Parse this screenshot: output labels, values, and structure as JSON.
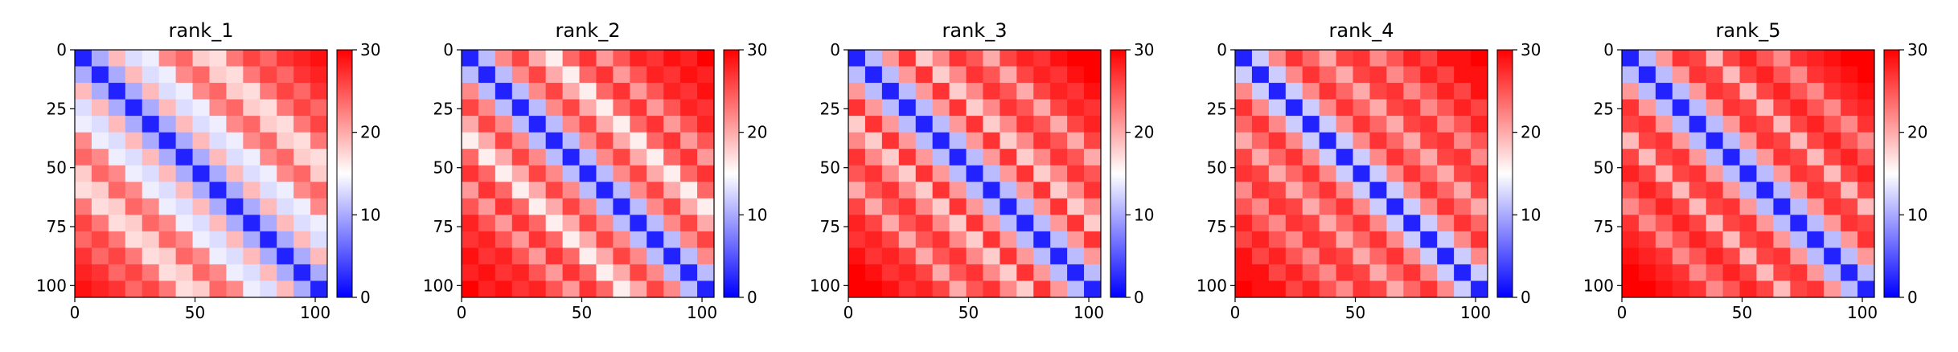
{
  "chart_data": [
    {
      "type": "heatmap",
      "title": "rank_1",
      "colormap": "bwr",
      "clim": [
        0,
        30
      ],
      "cticks": [
        0,
        10,
        20,
        30
      ],
      "xlim": [
        0,
        105
      ],
      "ylim": [
        105,
        0
      ],
      "xticks": [
        0,
        50,
        100
      ],
      "yticks": [
        0,
        25,
        50,
        75,
        100
      ],
      "z": [
        [
          2,
          10,
          19,
          13,
          14,
          22,
          24,
          18,
          17,
          23,
          26,
          24,
          27,
          28,
          29
        ],
        [
          10,
          2,
          10,
          19,
          13,
          14,
          22,
          24,
          18,
          17,
          23,
          26,
          24,
          27,
          28
        ],
        [
          19,
          10,
          2,
          10,
          19,
          13,
          14,
          22,
          24,
          18,
          17,
          23,
          26,
          24,
          27
        ],
        [
          13,
          19,
          10,
          2,
          10,
          19,
          13,
          14,
          22,
          24,
          18,
          17,
          23,
          26,
          24
        ],
        [
          14,
          13,
          19,
          10,
          2,
          10,
          19,
          13,
          14,
          22,
          24,
          18,
          17,
          23,
          26
        ],
        [
          22,
          14,
          13,
          19,
          10,
          2,
          10,
          19,
          13,
          14,
          22,
          24,
          18,
          17,
          23
        ],
        [
          24,
          22,
          14,
          13,
          19,
          10,
          2,
          10,
          19,
          13,
          14,
          22,
          24,
          18,
          17
        ],
        [
          18,
          24,
          22,
          14,
          13,
          19,
          10,
          2,
          10,
          19,
          13,
          14,
          22,
          24,
          18
        ],
        [
          17,
          18,
          24,
          22,
          14,
          13,
          19,
          10,
          2,
          10,
          19,
          13,
          14,
          22,
          24
        ],
        [
          23,
          17,
          18,
          24,
          22,
          14,
          13,
          19,
          10,
          2,
          10,
          19,
          13,
          14,
          22
        ],
        [
          26,
          23,
          17,
          18,
          24,
          22,
          14,
          13,
          19,
          10,
          2,
          10,
          19,
          13,
          14
        ],
        [
          24,
          26,
          23,
          17,
          18,
          24,
          22,
          14,
          13,
          19,
          10,
          2,
          10,
          19,
          13
        ],
        [
          27,
          24,
          26,
          23,
          17,
          18,
          24,
          22,
          14,
          13,
          19,
          10,
          2,
          10,
          19
        ],
        [
          28,
          27,
          24,
          26,
          23,
          17,
          18,
          24,
          22,
          14,
          13,
          19,
          10,
          2,
          10
        ],
        [
          29,
          28,
          27,
          24,
          26,
          23,
          17,
          18,
          24,
          22,
          14,
          13,
          19,
          10,
          2
        ]
      ]
    },
    {
      "type": "heatmap",
      "title": "rank_2",
      "colormap": "bwr",
      "clim": [
        0,
        30
      ],
      "cticks": [
        0,
        10,
        20,
        30
      ],
      "xlim": [
        0,
        105
      ],
      "ylim": [
        105,
        0
      ],
      "xticks": [
        0,
        50,
        100
      ],
      "yticks": [
        0,
        25,
        50,
        75,
        100
      ],
      "z": [
        [
          2,
          11,
          22,
          26,
          20,
          16,
          24,
          27,
          21,
          25,
          28,
          27,
          29,
          28,
          30
        ],
        [
          11,
          2,
          11,
          22,
          26,
          20,
          16,
          24,
          27,
          21,
          25,
          28,
          27,
          29,
          28
        ],
        [
          22,
          11,
          2,
          11,
          22,
          26,
          20,
          16,
          24,
          27,
          21,
          25,
          28,
          27,
          29
        ],
        [
          26,
          22,
          11,
          2,
          11,
          22,
          26,
          20,
          16,
          24,
          27,
          21,
          25,
          28,
          27
        ],
        [
          20,
          26,
          22,
          11,
          2,
          11,
          22,
          26,
          20,
          16,
          24,
          27,
          21,
          25,
          28
        ],
        [
          16,
          20,
          26,
          22,
          11,
          2,
          11,
          22,
          26,
          20,
          16,
          24,
          27,
          21,
          25
        ],
        [
          24,
          16,
          20,
          26,
          22,
          11,
          2,
          11,
          22,
          26,
          20,
          16,
          24,
          27,
          21
        ],
        [
          27,
          24,
          16,
          20,
          26,
          22,
          11,
          2,
          11,
          22,
          26,
          20,
          16,
          24,
          27
        ],
        [
          21,
          27,
          24,
          16,
          20,
          26,
          22,
          11,
          2,
          11,
          22,
          26,
          20,
          16,
          24
        ],
        [
          25,
          21,
          27,
          24,
          16,
          20,
          26,
          22,
          11,
          2,
          11,
          22,
          26,
          20,
          16
        ],
        [
          28,
          25,
          21,
          27,
          24,
          16,
          20,
          26,
          22,
          11,
          2,
          11,
          22,
          26,
          20
        ],
        [
          27,
          28,
          25,
          21,
          27,
          24,
          16,
          20,
          26,
          22,
          11,
          2,
          11,
          22,
          26
        ],
        [
          29,
          27,
          28,
          25,
          21,
          27,
          24,
          16,
          20,
          26,
          22,
          11,
          2,
          11,
          22
        ],
        [
          28,
          29,
          27,
          28,
          25,
          21,
          27,
          24,
          16,
          20,
          26,
          22,
          11,
          2,
          11
        ],
        [
          30,
          28,
          29,
          27,
          28,
          25,
          21,
          27,
          24,
          16,
          20,
          26,
          22,
          11,
          2
        ]
      ]
    },
    {
      "type": "heatmap",
      "title": "rank_3",
      "colormap": "bwr",
      "clim": [
        0,
        30
      ],
      "cticks": [
        0,
        10,
        20,
        30
      ],
      "xlim": [
        0,
        105
      ],
      "ylim": [
        105,
        0
      ],
      "xticks": [
        0,
        50,
        100
      ],
      "yticks": [
        0,
        25,
        50,
        75,
        100
      ],
      "z": [
        [
          2,
          11,
          21,
          27,
          18,
          22,
          27,
          25,
          20,
          26,
          28,
          27,
          29,
          30,
          30
        ],
        [
          11,
          2,
          11,
          21,
          27,
          18,
          22,
          27,
          25,
          20,
          26,
          28,
          27,
          29,
          30
        ],
        [
          21,
          11,
          2,
          11,
          21,
          27,
          18,
          22,
          27,
          25,
          20,
          26,
          28,
          27,
          29
        ],
        [
          27,
          21,
          11,
          2,
          11,
          21,
          27,
          18,
          22,
          27,
          25,
          20,
          26,
          28,
          27
        ],
        [
          18,
          27,
          21,
          11,
          2,
          11,
          21,
          27,
          18,
          22,
          27,
          25,
          20,
          26,
          28
        ],
        [
          22,
          18,
          27,
          21,
          11,
          2,
          11,
          21,
          27,
          18,
          22,
          27,
          25,
          20,
          26
        ],
        [
          27,
          22,
          18,
          27,
          21,
          11,
          2,
          11,
          21,
          27,
          18,
          22,
          27,
          25,
          20
        ],
        [
          25,
          27,
          22,
          18,
          27,
          21,
          11,
          2,
          11,
          21,
          27,
          18,
          22,
          27,
          25
        ],
        [
          20,
          25,
          27,
          22,
          18,
          27,
          21,
          11,
          2,
          11,
          21,
          27,
          18,
          22,
          27
        ],
        [
          26,
          20,
          25,
          27,
          22,
          18,
          27,
          21,
          11,
          2,
          11,
          21,
          27,
          18,
          22
        ],
        [
          28,
          26,
          20,
          25,
          27,
          22,
          18,
          27,
          21,
          11,
          2,
          11,
          21,
          27,
          18
        ],
        [
          27,
          28,
          26,
          20,
          25,
          27,
          22,
          18,
          27,
          21,
          11,
          2,
          11,
          21,
          27
        ],
        [
          29,
          27,
          28,
          26,
          20,
          25,
          27,
          22,
          18,
          27,
          21,
          11,
          2,
          11,
          21
        ],
        [
          30,
          29,
          27,
          28,
          26,
          20,
          25,
          27,
          22,
          18,
          27,
          21,
          11,
          2,
          11
        ],
        [
          30,
          30,
          29,
          27,
          28,
          26,
          20,
          25,
          27,
          22,
          18,
          27,
          21,
          11,
          2
        ]
      ]
    },
    {
      "type": "heatmap",
      "title": "rank_4",
      "colormap": "bwr",
      "clim": [
        0,
        30
      ],
      "cticks": [
        0,
        10,
        20,
        30
      ],
      "xlim": [
        0,
        105
      ],
      "ylim": [
        105,
        0
      ],
      "xticks": [
        0,
        50,
        100
      ],
      "yticks": [
        0,
        25,
        50,
        75,
        100
      ],
      "z": [
        [
          2,
          12,
          22,
          27,
          24,
          20,
          26,
          27,
          22,
          25,
          28,
          26,
          29,
          29,
          30
        ],
        [
          12,
          2,
          12,
          22,
          27,
          24,
          20,
          26,
          27,
          22,
          25,
          28,
          26,
          29,
          29
        ],
        [
          22,
          12,
          2,
          12,
          22,
          27,
          24,
          20,
          26,
          27,
          22,
          25,
          28,
          26,
          29
        ],
        [
          27,
          22,
          12,
          2,
          12,
          22,
          27,
          24,
          20,
          26,
          27,
          22,
          25,
          28,
          26
        ],
        [
          24,
          27,
          22,
          12,
          2,
          12,
          22,
          27,
          24,
          20,
          26,
          27,
          22,
          25,
          28
        ],
        [
          20,
          24,
          27,
          22,
          12,
          2,
          12,
          22,
          27,
          24,
          20,
          26,
          27,
          22,
          25
        ],
        [
          26,
          20,
          24,
          27,
          22,
          12,
          2,
          12,
          22,
          27,
          24,
          20,
          26,
          27,
          22
        ],
        [
          27,
          26,
          20,
          24,
          27,
          22,
          12,
          2,
          12,
          22,
          27,
          24,
          20,
          26,
          27
        ],
        [
          22,
          27,
          26,
          20,
          24,
          27,
          22,
          12,
          2,
          12,
          22,
          27,
          24,
          20,
          26
        ],
        [
          25,
          22,
          27,
          26,
          20,
          24,
          27,
          22,
          12,
          2,
          12,
          22,
          27,
          24,
          20
        ],
        [
          28,
          25,
          22,
          27,
          26,
          20,
          24,
          27,
          22,
          12,
          2,
          12,
          22,
          27,
          24
        ],
        [
          26,
          28,
          25,
          22,
          27,
          26,
          20,
          24,
          27,
          22,
          12,
          2,
          12,
          22,
          27
        ],
        [
          29,
          26,
          28,
          25,
          22,
          27,
          26,
          20,
          24,
          27,
          22,
          12,
          2,
          12,
          22
        ],
        [
          29,
          29,
          26,
          28,
          25,
          22,
          27,
          26,
          20,
          24,
          27,
          22,
          12,
          2,
          12
        ],
        [
          30,
          29,
          29,
          26,
          28,
          25,
          22,
          27,
          26,
          20,
          24,
          27,
          22,
          12,
          2
        ]
      ]
    },
    {
      "type": "heatmap",
      "title": "rank_5",
      "colormap": "bwr",
      "clim": [
        0,
        30
      ],
      "cticks": [
        0,
        10,
        20,
        30
      ],
      "xlim": [
        0,
        105
      ],
      "ylim": [
        105,
        0
      ],
      "xticks": [
        0,
        50,
        100
      ],
      "yticks": [
        0,
        25,
        50,
        75,
        100
      ],
      "z": [
        [
          2,
          11,
          21,
          27,
          26,
          19,
          26,
          28,
          25,
          22,
          27,
          28,
          29,
          30,
          30
        ],
        [
          11,
          2,
          11,
          21,
          27,
          26,
          19,
          26,
          28,
          25,
          22,
          27,
          28,
          29,
          30
        ],
        [
          21,
          11,
          2,
          11,
          21,
          27,
          26,
          19,
          26,
          28,
          25,
          22,
          27,
          28,
          29
        ],
        [
          27,
          21,
          11,
          2,
          11,
          21,
          27,
          26,
          19,
          26,
          28,
          25,
          22,
          27,
          28
        ],
        [
          26,
          27,
          21,
          11,
          2,
          11,
          21,
          27,
          26,
          19,
          26,
          28,
          25,
          22,
          27
        ],
        [
          19,
          26,
          27,
          21,
          11,
          2,
          11,
          21,
          27,
          26,
          19,
          26,
          28,
          25,
          22
        ],
        [
          26,
          19,
          26,
          27,
          21,
          11,
          2,
          11,
          21,
          27,
          26,
          19,
          26,
          28,
          25
        ],
        [
          28,
          26,
          19,
          26,
          27,
          21,
          11,
          2,
          11,
          21,
          27,
          26,
          19,
          26,
          28
        ],
        [
          25,
          28,
          26,
          19,
          26,
          27,
          21,
          11,
          2,
          11,
          21,
          27,
          26,
          19,
          26
        ],
        [
          22,
          25,
          28,
          26,
          19,
          26,
          27,
          21,
          11,
          2,
          11,
          21,
          27,
          26,
          19
        ],
        [
          27,
          22,
          25,
          28,
          26,
          19,
          26,
          27,
          21,
          11,
          2,
          11,
          21,
          27,
          26
        ],
        [
          28,
          27,
          22,
          25,
          28,
          26,
          19,
          26,
          27,
          21,
          11,
          2,
          11,
          21,
          27
        ],
        [
          29,
          28,
          27,
          22,
          25,
          28,
          26,
          19,
          26,
          27,
          21,
          11,
          2,
          11,
          21
        ],
        [
          30,
          29,
          28,
          27,
          22,
          25,
          28,
          26,
          19,
          26,
          27,
          21,
          11,
          2,
          11
        ],
        [
          30,
          30,
          29,
          28,
          27,
          22,
          25,
          28,
          26,
          19,
          26,
          27,
          21,
          11,
          2
        ]
      ]
    }
  ]
}
